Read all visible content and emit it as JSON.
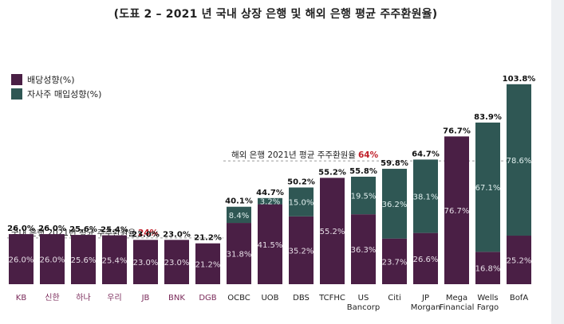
{
  "title": "(도표 2 – 2021 년 국내 상장 은행 및 해외 은행 평균 주주환원율)",
  "colors": {
    "dividend": "#4a1f45",
    "buyback": "#2f5754",
    "domestic_label": "#7a2a5a",
    "highlight": "#c0202a"
  },
  "legend": {
    "dividend": "배당성향(%)",
    "buyback": "자사주 매입성향(%)"
  },
  "annotations": {
    "domestic_text": "국내 은행 2021년 평균 주주환원율",
    "domestic_value": "24%",
    "overseas_text": "해외 은행 2021년 평균 주주환원율",
    "overseas_value": "64%"
  },
  "chart_data": {
    "type": "bar",
    "stacked": true,
    "title": "(도표 2 – 2021 년 국내 상장 은행 및 해외 은행 평균 주주환원율)",
    "categories": [
      [
        "KB"
      ],
      [
        "신한"
      ],
      [
        "하나"
      ],
      [
        "우리"
      ],
      [
        "JB"
      ],
      [
        "BNK"
      ],
      [
        "DGB"
      ],
      [
        "OCBC"
      ],
      [
        "UOB"
      ],
      [
        "DBS"
      ],
      [
        "TCFHC"
      ],
      [
        "US",
        "Bancorp"
      ],
      [
        "Citi"
      ],
      [
        "JP",
        "Morgan"
      ],
      [
        "Mega",
        "Financial"
      ],
      [
        "Wells",
        "Fargo"
      ],
      [
        "BofA"
      ]
    ],
    "domestic": [
      true,
      true,
      true,
      true,
      true,
      true,
      true,
      false,
      false,
      false,
      false,
      false,
      false,
      false,
      false,
      false,
      false
    ],
    "series": [
      {
        "name": "배당성향(%)",
        "values": [
          26.0,
          26.0,
          25.6,
          25.4,
          23.0,
          23.0,
          21.2,
          31.8,
          41.5,
          35.2,
          55.2,
          36.3,
          23.7,
          26.6,
          76.7,
          16.8,
          25.2
        ]
      },
      {
        "name": "자사주 매입성향(%)",
        "values": [
          0,
          0,
          0,
          0,
          0,
          0,
          0,
          8.4,
          3.2,
          15.0,
          0,
          19.5,
          36.2,
          38.1,
          0,
          67.1,
          78.6
        ]
      }
    ],
    "totals": [
      26.0,
      26.0,
      25.6,
      25.4,
      23.0,
      23.0,
      21.2,
      40.1,
      44.7,
      50.2,
      55.2,
      55.8,
      59.8,
      64.7,
      76.7,
      83.9,
      103.8
    ],
    "reference_lines": [
      24,
      64
    ],
    "legend": "top-left",
    "grid": false
  }
}
